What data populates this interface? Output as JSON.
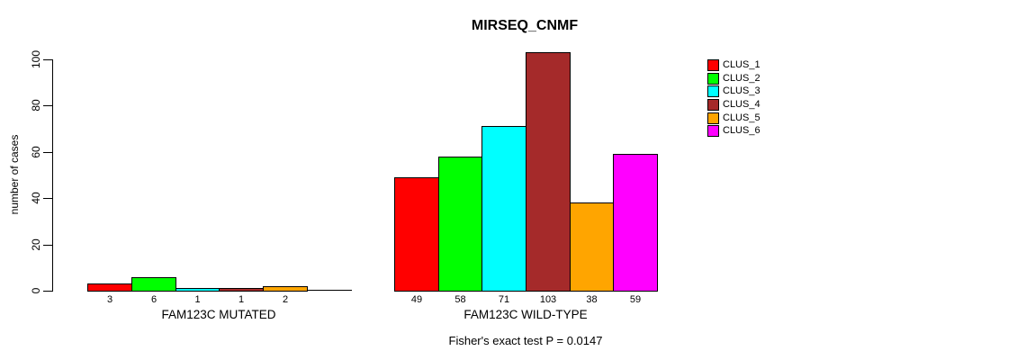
{
  "chart_data": {
    "type": "bar",
    "title": "MIRSEQ_CNMF",
    "ylabel": "number of cases",
    "xlabel": "",
    "ylim": [
      0,
      100
    ],
    "yticks": [
      "0",
      "20",
      "40",
      "60",
      "80",
      "100"
    ],
    "ytick_values": [
      0,
      20,
      40,
      60,
      80,
      100
    ],
    "grid": "off",
    "legend_position": "right",
    "series_colors": [
      "#FF0000",
      "#00FF00",
      "#00FFFF",
      "#A52A2A",
      "#FFA500",
      "#FF00FF"
    ],
    "legend": [
      {
        "label": "CLUS_1",
        "color": "#FF0000"
      },
      {
        "label": "CLUS_2",
        "color": "#00FF00"
      },
      {
        "label": "CLUS_3",
        "color": "#00FFFF"
      },
      {
        "label": "CLUS_4",
        "color": "#A52A2A"
      },
      {
        "label": "CLUS_5",
        "color": "#FFA500"
      },
      {
        "label": "CLUS_6",
        "color": "#FF00FF"
      }
    ],
    "groups": [
      {
        "label": "FAM123C MUTATED",
        "categories": [
          "CLUS_1",
          "CLUS_2",
          "CLUS_3",
          "CLUS_4",
          "CLUS_5",
          "CLUS_6"
        ],
        "values": [
          3,
          6,
          1,
          1,
          2,
          0
        ],
        "value_labels": [
          "3",
          "6",
          "1",
          "1",
          "2",
          null
        ]
      },
      {
        "label": "FAM123C WILD-TYPE",
        "categories": [
          "CLUS_1",
          "CLUS_2",
          "CLUS_3",
          "CLUS_4",
          "CLUS_5",
          "CLUS_6"
        ],
        "values": [
          49,
          58,
          71,
          103,
          38,
          59
        ],
        "value_labels": [
          "49",
          "58",
          "71",
          "103",
          "38",
          "59"
        ]
      }
    ],
    "footnote": "Fisher's exact test P = 0.0147"
  }
}
